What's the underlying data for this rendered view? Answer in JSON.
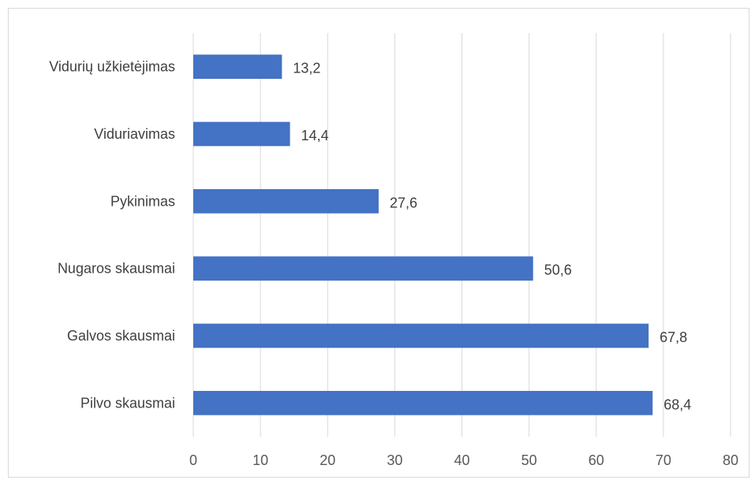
{
  "chart_data": {
    "type": "bar",
    "orientation": "horizontal",
    "categories": [
      "Vidurių užkietėjimas",
      "Viduriavimas",
      "Pykinimas",
      "Nugaros skausmai",
      "Galvos skausmai",
      "Pilvo skausmai"
    ],
    "values": [
      13.2,
      14.4,
      27.6,
      50.6,
      67.8,
      68.4
    ],
    "value_labels": [
      "13,2",
      "14,4",
      "27,6",
      "50,6",
      "67,8",
      "68,4"
    ],
    "xlim": [
      0,
      80
    ],
    "x_ticks": [
      0,
      10,
      20,
      30,
      40,
      50,
      60,
      70,
      80
    ],
    "title": "",
    "xlabel": "",
    "ylabel": "",
    "grid": true,
    "legend": "none",
    "bar_color": "#4472c4"
  }
}
